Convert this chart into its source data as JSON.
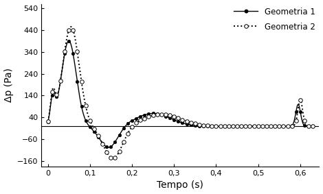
{
  "xlabel": "Tempo (s)",
  "ylabel": "Δp (Pa)",
  "xlim": [
    -0.015,
    0.645
  ],
  "ylim": [
    -185,
    560
  ],
  "yticks": [
    -160,
    -60,
    40,
    140,
    240,
    340,
    440,
    540
  ],
  "xticks": [
    0.0,
    0.1,
    0.2,
    0.3,
    0.4,
    0.5,
    0.6
  ],
  "xtick_labels": [
    "0",
    "0,1",
    "0,2",
    "0,3",
    "0,4",
    "0,5",
    "0,6"
  ],
  "background_color": "#ffffff",
  "legend1": "Geometria 1",
  "legend2": "Geometria 2"
}
